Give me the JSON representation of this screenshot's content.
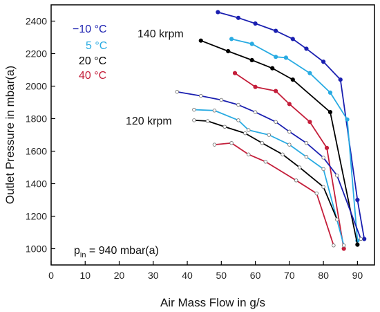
{
  "chart_data": {
    "type": "line",
    "xlabel": "Air Mass Flow in g/s",
    "ylabel": "Outlet Pressure in mbar(a)",
    "xlim": [
      0,
      95
    ],
    "ylim": [
      900,
      2500
    ],
    "xticks": [
      0,
      10,
      20,
      30,
      40,
      50,
      60,
      70,
      80,
      90
    ],
    "yticks": [
      1000,
      1200,
      1400,
      1600,
      1800,
      2000,
      2200,
      2400
    ],
    "grid": false,
    "legend": [
      {
        "label": "−10 °C",
        "color": "#1a1fb0"
      },
      {
        "label": "5 °C",
        "color": "#29abe2"
      },
      {
        "label": "20 °C",
        "color": "#000000"
      },
      {
        "label": "40 °C",
        "color": "#c41e3a"
      }
    ],
    "annotations": {
      "speed_140": "140 krpm",
      "speed_120": "120 krpm",
      "pin_base": "p",
      "pin_sub": "in",
      "pin_rest": " = 940 mbar(a)"
    },
    "series": [
      {
        "temperature": "−10 °C",
        "speed": "140 krpm",
        "color": "#1a1fb0",
        "marker": "filled",
        "x": [
          49,
          55,
          60,
          66,
          71,
          75,
          80,
          85,
          90,
          92
        ],
        "y": [
          2455,
          2420,
          2385,
          2340,
          2290,
          2230,
          2150,
          2040,
          1300,
          1060
        ]
      },
      {
        "temperature": "5 °C",
        "speed": "140 krpm",
        "color": "#29abe2",
        "marker": "filled",
        "x": [
          53,
          59,
          66,
          69,
          76,
          82,
          87,
          90
        ],
        "y": [
          2290,
          2260,
          2180,
          2175,
          2080,
          1960,
          1795,
          1050
        ]
      },
      {
        "temperature": "20 °C",
        "speed": "140 krpm",
        "color": "#000000",
        "marker": "filled",
        "x": [
          44,
          52,
          59,
          65,
          71,
          82,
          90
        ],
        "y": [
          2280,
          2215,
          2160,
          2110,
          2040,
          1840,
          1025
        ]
      },
      {
        "temperature": "40 °C",
        "speed": "140 krpm",
        "color": "#c41e3a",
        "marker": "filled",
        "x": [
          54,
          60,
          66,
          70,
          76,
          81,
          86
        ],
        "y": [
          2080,
          1995,
          1970,
          1890,
          1780,
          1620,
          1000
        ]
      },
      {
        "temperature": "−10 °C",
        "speed": "120 krpm",
        "color": "#1a1fb0",
        "marker": "open",
        "x": [
          37,
          44,
          50,
          55,
          60,
          66,
          70,
          75,
          80,
          84,
          91
        ],
        "y": [
          1965,
          1940,
          1915,
          1885,
          1840,
          1780,
          1720,
          1650,
          1560,
          1450,
          1060
        ]
      },
      {
        "temperature": "5 °C",
        "speed": "120 krpm",
        "color": "#29abe2",
        "marker": "open",
        "x": [
          42,
          48,
          55,
          58,
          64,
          70,
          75,
          80,
          86
        ],
        "y": [
          1855,
          1850,
          1790,
          1730,
          1700,
          1640,
          1565,
          1490,
          1020
        ]
      },
      {
        "temperature": "20 °C",
        "speed": "120 krpm",
        "color": "#000000",
        "marker": "open",
        "x": [
          42,
          46,
          51,
          57,
          62,
          68,
          73,
          80,
          84
        ],
        "y": [
          1790,
          1785,
          1750,
          1710,
          1650,
          1580,
          1500,
          1380,
          1180
        ]
      },
      {
        "temperature": "40 °C",
        "speed": "120 krpm",
        "color": "#c41e3a",
        "marker": "open",
        "x": [
          48,
          53,
          58,
          63,
          72,
          78,
          83
        ],
        "y": [
          1640,
          1650,
          1580,
          1535,
          1420,
          1340,
          1020
        ]
      }
    ]
  }
}
